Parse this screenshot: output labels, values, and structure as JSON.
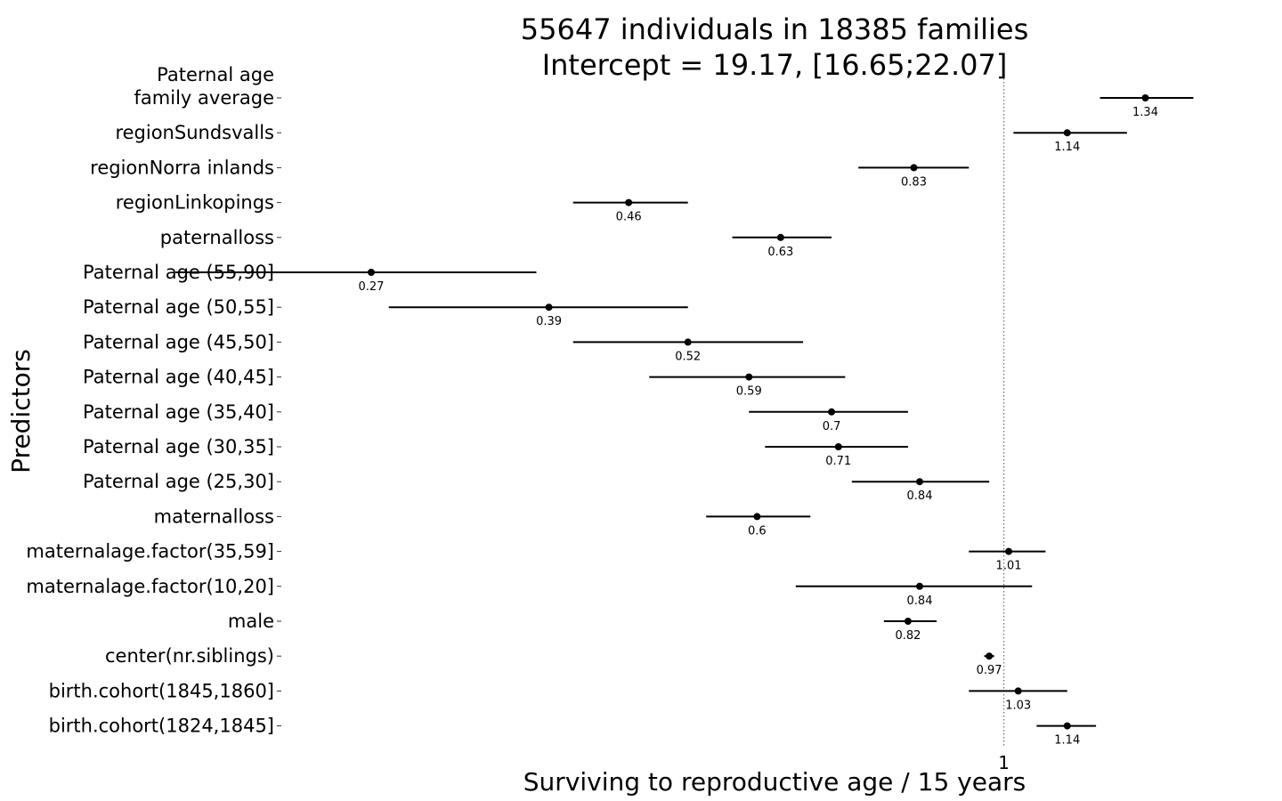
{
  "chart_data": {
    "type": "forest",
    "title": "55647 individuals in 18385 families",
    "subtitle": "Intercept = 19.17, [16.65;22.07]",
    "xlabel": "Surviving to reproductive age / 15 years",
    "ylabel": "Predictors",
    "x_scale": "log",
    "x_ticks": [
      "1"
    ],
    "reference_line": 1,
    "xlim": [
      0.225,
      1.72
    ],
    "grid": false,
    "predictors": [
      {
        "label_lines": [
          "Paternal age",
          "family average"
        ],
        "estimate": 1.34,
        "ci": [
          1.22,
          1.48
        ],
        "value_label": "1.34"
      },
      {
        "label_lines": [
          "regionSundsvalls"
        ],
        "estimate": 1.14,
        "ci": [
          1.02,
          1.29
        ],
        "value_label": "1.14"
      },
      {
        "label_lines": [
          "regionNorra inlands"
        ],
        "estimate": 0.83,
        "ci": [
          0.74,
          0.93
        ],
        "value_label": "0.83"
      },
      {
        "label_lines": [
          "regionLinkopings"
        ],
        "estimate": 0.46,
        "ci": [
          0.41,
          0.52
        ],
        "value_label": "0.46"
      },
      {
        "label_lines": [
          "paternalloss"
        ],
        "estimate": 0.63,
        "ci": [
          0.57,
          0.7
        ],
        "value_label": "0.63"
      },
      {
        "label_lines": [
          "Paternal age (55,90]"
        ],
        "estimate": 0.27,
        "ci": [
          0.18,
          0.38
        ],
        "value_label": "0.27"
      },
      {
        "label_lines": [
          "Paternal age (50,55]"
        ],
        "estimate": 0.39,
        "ci": [
          0.28,
          0.52
        ],
        "value_label": "0.39"
      },
      {
        "label_lines": [
          "Paternal age (45,50]"
        ],
        "estimate": 0.52,
        "ci": [
          0.41,
          0.66
        ],
        "value_label": "0.52"
      },
      {
        "label_lines": [
          "Paternal age (40,45]"
        ],
        "estimate": 0.59,
        "ci": [
          0.48,
          0.72
        ],
        "value_label": "0.59"
      },
      {
        "label_lines": [
          "Paternal age (35,40]"
        ],
        "estimate": 0.7,
        "ci": [
          0.59,
          0.82
        ],
        "value_label": "0.7"
      },
      {
        "label_lines": [
          "Paternal age (30,35]"
        ],
        "estimate": 0.71,
        "ci": [
          0.61,
          0.82
        ],
        "value_label": "0.71"
      },
      {
        "label_lines": [
          "Paternal age (25,30]"
        ],
        "estimate": 0.84,
        "ci": [
          0.73,
          0.97
        ],
        "value_label": "0.84"
      },
      {
        "label_lines": [
          "maternalloss"
        ],
        "estimate": 0.6,
        "ci": [
          0.54,
          0.67
        ],
        "value_label": "0.6"
      },
      {
        "label_lines": [
          "maternalage.factor(35,59]"
        ],
        "estimate": 1.01,
        "ci": [
          0.93,
          1.09
        ],
        "value_label": "1.01"
      },
      {
        "label_lines": [
          "maternalage.factor(10,20]"
        ],
        "estimate": 0.84,
        "ci": [
          0.65,
          1.06
        ],
        "value_label": "0.84"
      },
      {
        "label_lines": [
          "male"
        ],
        "estimate": 0.82,
        "ci": [
          0.78,
          0.87
        ],
        "value_label": "0.82"
      },
      {
        "label_lines": [
          "center(nr.siblings)"
        ],
        "estimate": 0.97,
        "ci": [
          0.96,
          0.98
        ],
        "value_label": "0.97"
      },
      {
        "label_lines": [
          "birth.cohort(1845,1860]"
        ],
        "estimate": 1.03,
        "ci": [
          0.93,
          1.14
        ],
        "value_label": "1.03"
      },
      {
        "label_lines": [
          "birth.cohort(1824,1845]"
        ],
        "estimate": 1.14,
        "ci": [
          1.07,
          1.21
        ],
        "value_label": "1.14"
      }
    ]
  }
}
